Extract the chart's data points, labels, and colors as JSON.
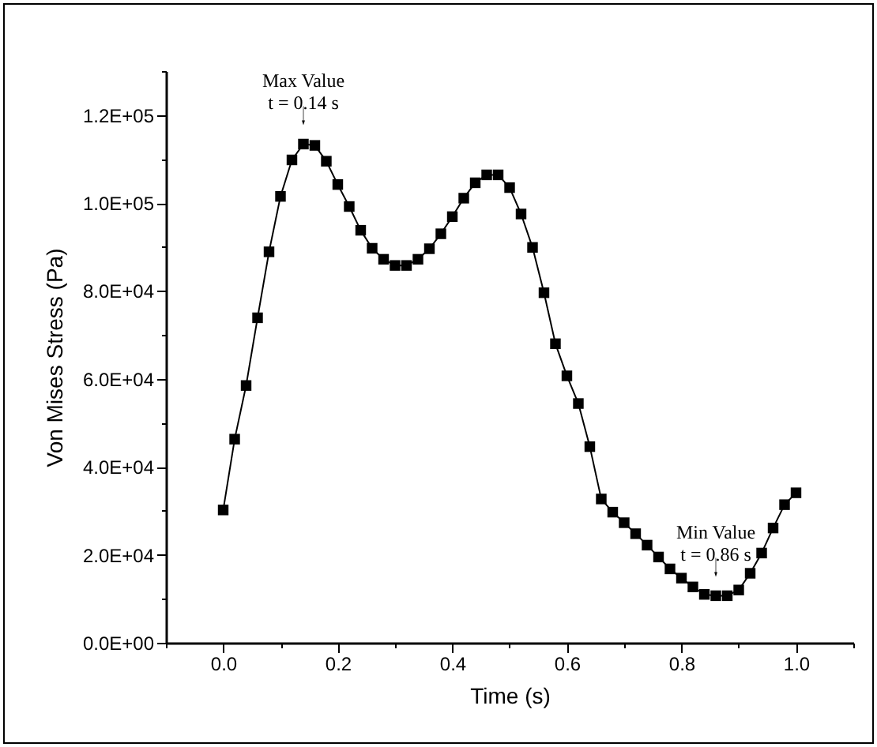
{
  "chart_data": {
    "type": "line",
    "xlabel": "Time (s)",
    "ylabel": "Von Mises Stress (Pa)",
    "marker": "square",
    "line_style": "solid",
    "grid": false,
    "legend": false,
    "x": [
      0,
      0.02,
      0.04,
      0.06,
      0.08,
      0.1,
      0.12,
      0.14,
      0.16,
      0.18,
      0.2,
      0.22,
      0.24,
      0.26,
      0.28,
      0.3,
      0.32,
      0.34,
      0.36,
      0.38,
      0.4,
      0.42,
      0.44,
      0.46,
      0.48,
      0.5,
      0.52,
      0.54,
      0.56,
      0.58,
      0.6,
      0.62,
      0.64,
      0.66,
      0.68,
      0.7,
      0.72,
      0.74,
      0.76,
      0.78,
      0.8,
      0.82,
      0.84,
      0.86,
      0.88,
      0.9,
      0.92,
      0.94,
      0.96,
      0.98,
      1.0
    ],
    "series": [
      {
        "color": "#000000",
        "values": [
          30200,
          46300,
          58500,
          73900,
          88900,
          101500,
          109800,
          113400,
          113100,
          109500,
          104200,
          99200,
          93800,
          89700,
          87200,
          85800,
          85800,
          87200,
          89600,
          93000,
          96900,
          101100,
          104600,
          106400,
          106400,
          103500,
          97500,
          89900,
          79600,
          68000,
          60700,
          54400,
          44600,
          32700,
          29700,
          27300,
          24800,
          22200,
          19500,
          16800,
          14700,
          12700,
          11000,
          10700,
          10700,
          12000,
          15800,
          20400,
          26100,
          31400,
          34100
        ]
      }
    ],
    "xlim": [
      -0.1,
      1.1
    ],
    "xticks": [
      {
        "value": -0.1,
        "label": null
      },
      {
        "value": 0,
        "label": "0.0"
      },
      {
        "value": 0.1,
        "label": null
      },
      {
        "value": 0.2,
        "label": "0.2"
      },
      {
        "value": 0.3,
        "label": null
      },
      {
        "value": 0.4,
        "label": "0.4"
      },
      {
        "value": 0.5,
        "label": null
      },
      {
        "value": 0.6,
        "label": "0.6"
      },
      {
        "value": 0.7,
        "label": null
      },
      {
        "value": 0.8,
        "label": "0.8"
      },
      {
        "value": 0.9,
        "label": null
      },
      {
        "value": 1.0,
        "label": "1.0"
      },
      {
        "value": 1.1,
        "label": null
      }
    ],
    "ylim": [
      0,
      130000
    ],
    "yticks": [
      {
        "value": 0,
        "label": "0.0E+00"
      },
      {
        "value": 10000,
        "label": null
      },
      {
        "value": 20000,
        "label": "2.0E+04"
      },
      {
        "value": 30000,
        "label": null
      },
      {
        "value": 40000,
        "label": "4.0E+04"
      },
      {
        "value": 50000,
        "label": null
      },
      {
        "value": 60000,
        "label": "6.0E+04"
      },
      {
        "value": 70000,
        "label": null
      },
      {
        "value": 80000,
        "label": "8.0E+04"
      },
      {
        "value": 90000,
        "label": null
      },
      {
        "value": 100000,
        "label": "1.0E+05"
      },
      {
        "value": 110000,
        "label": null
      },
      {
        "value": 120000,
        "label": "1.2E+05"
      },
      {
        "value": 130000,
        "label": null
      }
    ],
    "annotations": [
      {
        "text": "Max Value\nt = 0.14 s",
        "x": 0.14,
        "y": 113400
      },
      {
        "text": "Min Value\nt = 0.86 s",
        "x": 0.86,
        "y": 10700
      }
    ]
  }
}
